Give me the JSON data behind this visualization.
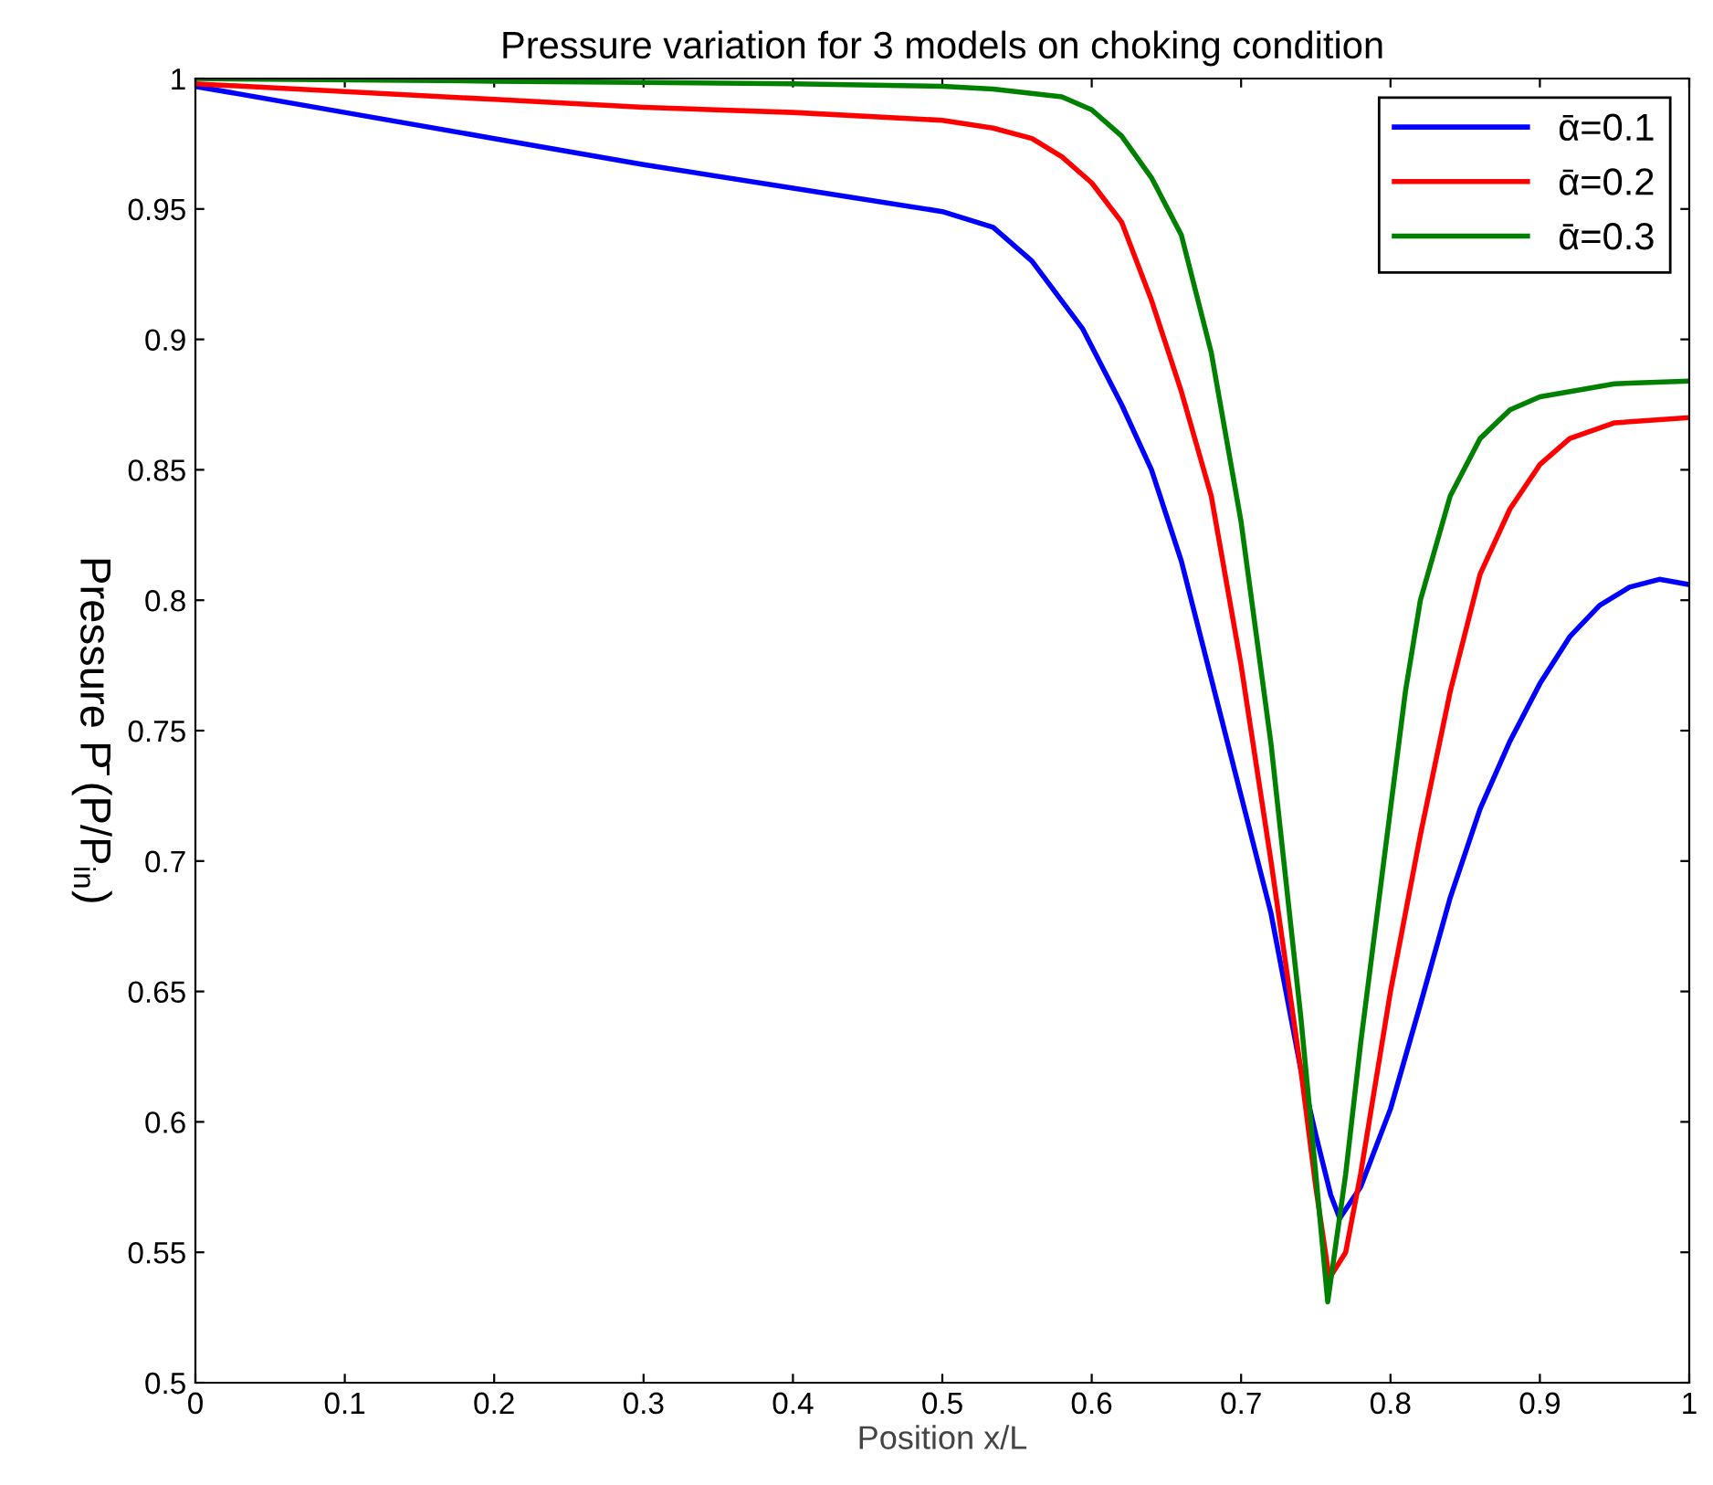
{
  "chart_data": {
    "type": "line",
    "title": "Pressure variation for 3 models on choking condition",
    "xlabel": "Position x/L",
    "ylabel": "Pressure P̄ (P/P$_{in}$)",
    "xlim": [
      0,
      1
    ],
    "ylim": [
      0.5,
      1
    ],
    "xticks": [
      0,
      0.1,
      0.2,
      0.3,
      0.4,
      0.5,
      0.6,
      0.7,
      0.8,
      0.9,
      1
    ],
    "yticks": [
      0.5,
      0.55,
      0.6,
      0.65,
      0.7,
      0.75,
      0.8,
      0.85,
      0.9,
      0.95,
      1
    ],
    "grid": false,
    "legend": "top right",
    "marker": "none",
    "line_style": "solid",
    "series": [
      {
        "name": "ᾱ=0.1",
        "color": "#0000ff",
        "x": [
          0,
          0.1,
          0.2,
          0.3,
          0.4,
          0.5,
          0.534,
          0.56,
          0.594,
          0.62,
          0.64,
          0.66,
          0.68,
          0.7,
          0.72,
          0.74,
          0.75,
          0.76,
          0.766,
          0.78,
          0.8,
          0.82,
          0.84,
          0.86,
          0.88,
          0.9,
          0.92,
          0.94,
          0.96,
          0.98,
          1.0
        ],
        "values": [
          0.997,
          0.987,
          0.977,
          0.967,
          0.958,
          0.949,
          0.943,
          0.93,
          0.904,
          0.875,
          0.85,
          0.815,
          0.77,
          0.725,
          0.68,
          0.62,
          0.595,
          0.572,
          0.563,
          0.575,
          0.605,
          0.645,
          0.686,
          0.72,
          0.746,
          0.768,
          0.786,
          0.798,
          0.805,
          0.808,
          0.806
        ]
      },
      {
        "name": "ᾱ=0.2",
        "color": "#ff0000",
        "x": [
          0,
          0.1,
          0.2,
          0.3,
          0.4,
          0.5,
          0.534,
          0.56,
          0.58,
          0.6,
          0.62,
          0.64,
          0.66,
          0.68,
          0.7,
          0.72,
          0.74,
          0.75,
          0.759,
          0.77,
          0.78,
          0.8,
          0.82,
          0.84,
          0.86,
          0.88,
          0.9,
          0.92,
          0.95,
          1.0
        ],
        "values": [
          0.998,
          0.995,
          0.992,
          0.989,
          0.987,
          0.984,
          0.981,
          0.977,
          0.97,
          0.96,
          0.945,
          0.915,
          0.88,
          0.84,
          0.775,
          0.7,
          0.62,
          0.575,
          0.54,
          0.55,
          0.58,
          0.65,
          0.71,
          0.765,
          0.81,
          0.835,
          0.852,
          0.862,
          0.868,
          0.87
        ]
      },
      {
        "name": "ᾱ=0.3",
        "color": "#008000",
        "x": [
          0,
          0.2,
          0.4,
          0.5,
          0.534,
          0.58,
          0.6,
          0.62,
          0.64,
          0.66,
          0.68,
          0.7,
          0.72,
          0.74,
          0.75,
          0.758,
          0.77,
          0.78,
          0.79,
          0.8,
          0.81,
          0.82,
          0.84,
          0.86,
          0.88,
          0.9,
          0.95,
          1.0
        ],
        "values": [
          1.0,
          0.999,
          0.998,
          0.997,
          0.996,
          0.993,
          0.988,
          0.978,
          0.962,
          0.94,
          0.895,
          0.83,
          0.745,
          0.64,
          0.58,
          0.531,
          0.58,
          0.63,
          0.675,
          0.72,
          0.765,
          0.8,
          0.84,
          0.862,
          0.873,
          0.878,
          0.883,
          0.884
        ]
      }
    ]
  }
}
